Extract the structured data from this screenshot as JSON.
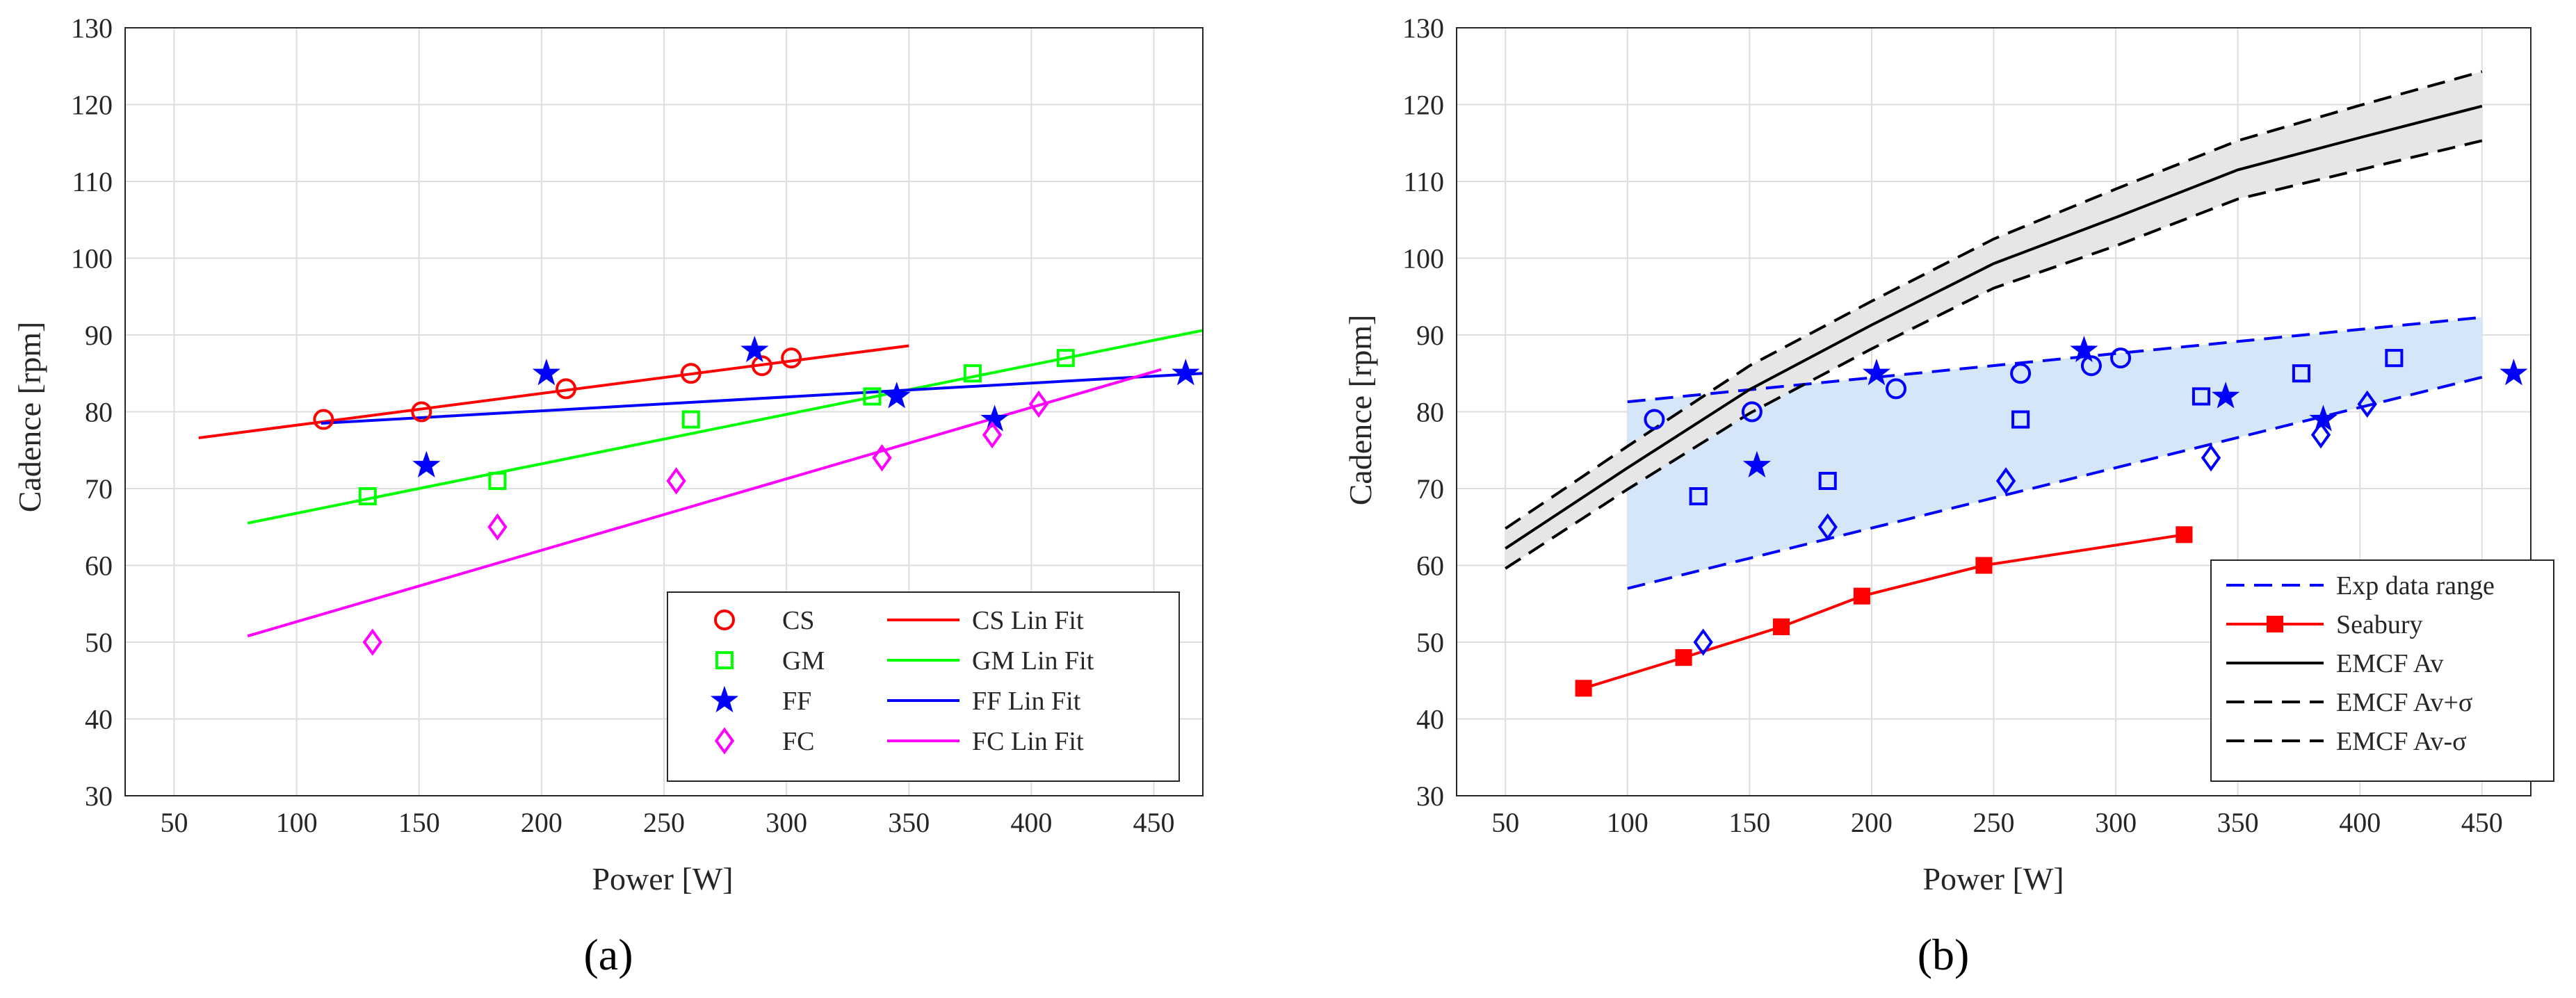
{
  "chart_data": [
    {
      "panel": "a",
      "type": "scatter",
      "panel_label": "(a)",
      "xlabel": "Power [W]",
      "ylabel": "Cadence [rpm]",
      "xlim": [
        30,
        470
      ],
      "ylim": [
        30,
        130
      ],
      "xticks": [
        50,
        100,
        150,
        200,
        250,
        300,
        350,
        400,
        450
      ],
      "yticks": [
        30,
        40,
        50,
        60,
        70,
        80,
        90,
        100,
        110,
        120,
        130
      ],
      "grid": true,
      "legend_position": "bottom-right",
      "series": [
        {
          "name": "CS",
          "marker": "circle",
          "color": "#ff0000",
          "x": [
            111,
            151,
            210,
            261,
            290,
            302
          ],
          "y": [
            79,
            80,
            83,
            85,
            86,
            87
          ]
        },
        {
          "name": "GM",
          "marker": "square",
          "color": "#00ff00",
          "x": [
            129,
            182,
            261,
            335,
            376,
            414
          ],
          "y": [
            69,
            71,
            79,
            82,
            85,
            87
          ]
        },
        {
          "name": "FF",
          "marker": "star",
          "color": "#0000ff",
          "x": [
            153,
            202,
            287,
            345,
            385,
            463
          ],
          "y": [
            73,
            85,
            88,
            82,
            79,
            85
          ]
        },
        {
          "name": "FC",
          "marker": "diamond",
          "color": "#ff00ff",
          "x": [
            131,
            182,
            255,
            339,
            384,
            403
          ],
          "y": [
            50,
            65,
            71,
            74,
            77,
            81
          ]
        }
      ],
      "fits": [
        {
          "name": "CS Lin Fit",
          "color": "#ff0000",
          "x": [
            60,
            350
          ],
          "y": [
            76.6,
            88.6
          ]
        },
        {
          "name": "GM Lin Fit",
          "color": "#00ff00",
          "x": [
            80,
            470
          ],
          "y": [
            65.5,
            90.6
          ]
        },
        {
          "name": "FF Lin Fit",
          "color": "#0000ff",
          "x": [
            110,
            470
          ],
          "y": [
            78.5,
            85.0
          ]
        },
        {
          "name": "FC Lin Fit",
          "color": "#ff00ff",
          "x": [
            80,
            453
          ],
          "y": [
            50.8,
            85.5
          ]
        }
      ],
      "legend": {
        "markers": [
          "CS",
          "GM",
          "FF",
          "FC"
        ],
        "lines": [
          "CS Lin Fit",
          "GM Lin Fit",
          "FF Lin Fit",
          "FC Lin Fit"
        ]
      }
    },
    {
      "panel": "b",
      "type": "line",
      "panel_label": "(b)",
      "xlabel": "Power [W]",
      "ylabel": "Cadence [rpm]",
      "xlim": [
        30,
        470
      ],
      "ylim": [
        30,
        130
      ],
      "xticks": [
        50,
        100,
        150,
        200,
        250,
        300,
        350,
        400,
        450
      ],
      "yticks": [
        30,
        40,
        50,
        60,
        70,
        80,
        90,
        100,
        110,
        120,
        130
      ],
      "grid": true,
      "legend_position": "bottom-right",
      "exp_range": {
        "name": "Exp data range",
        "color": "#0000ff",
        "fill": "#d4e6f8",
        "x": [
          100,
          450
        ],
        "upper": [
          81.3,
          92.3
        ],
        "lower": [
          57.0,
          84.5
        ]
      },
      "markers": [
        {
          "marker": "circle",
          "x": [
            111,
            151,
            210,
            261,
            290,
            302
          ],
          "y": [
            79,
            80,
            83,
            85,
            86,
            87
          ]
        },
        {
          "marker": "square",
          "x": [
            129,
            182,
            261,
            335,
            376,
            414
          ],
          "y": [
            69,
            71,
            79,
            82,
            85,
            87
          ]
        },
        {
          "marker": "star",
          "x": [
            153,
            202,
            287,
            345,
            385,
            463
          ],
          "y": [
            73,
            85,
            88,
            82,
            79,
            85
          ]
        },
        {
          "marker": "diamond",
          "x": [
            131,
            182,
            255,
            339,
            384,
            403
          ],
          "y": [
            50,
            65,
            71,
            74,
            77,
            81
          ]
        }
      ],
      "series": [
        {
          "name": "Seabury",
          "color": "#ff0000",
          "marker": "filled-square",
          "x": [
            82,
            123,
            163,
            196,
            246,
            328
          ],
          "y": [
            44,
            48,
            52,
            56,
            60,
            64
          ]
        },
        {
          "name": "EMCF Av",
          "color": "#000000",
          "style": "solid",
          "x": [
            50,
            100,
            150,
            200,
            250,
            300,
            350,
            400,
            450
          ],
          "y": [
            62.2,
            72.7,
            82.9,
            91.3,
            99.3,
            105.3,
            111.5,
            115.7,
            119.8
          ]
        },
        {
          "name": "EMCF Av+σ",
          "color": "#000000",
          "style": "dashed",
          "x": [
            50,
            100,
            150,
            200,
            250,
            300,
            350,
            400,
            450
          ],
          "y": [
            64.8,
            75.5,
            86.0,
            94.4,
            102.5,
            109.0,
            115.3,
            119.9,
            124.3
          ]
        },
        {
          "name": "EMCF Av-σ",
          "color": "#000000",
          "style": "dashed",
          "x": [
            50,
            100,
            150,
            200,
            250,
            300,
            350,
            400,
            450
          ],
          "y": [
            59.6,
            69.9,
            79.8,
            88.2,
            96.1,
            101.6,
            107.7,
            111.5,
            115.3
          ]
        }
      ],
      "legend": [
        "Exp data range",
        "Seabury",
        "EMCF Av",
        "EMCF Av+σ",
        "EMCF Av-σ"
      ]
    }
  ]
}
